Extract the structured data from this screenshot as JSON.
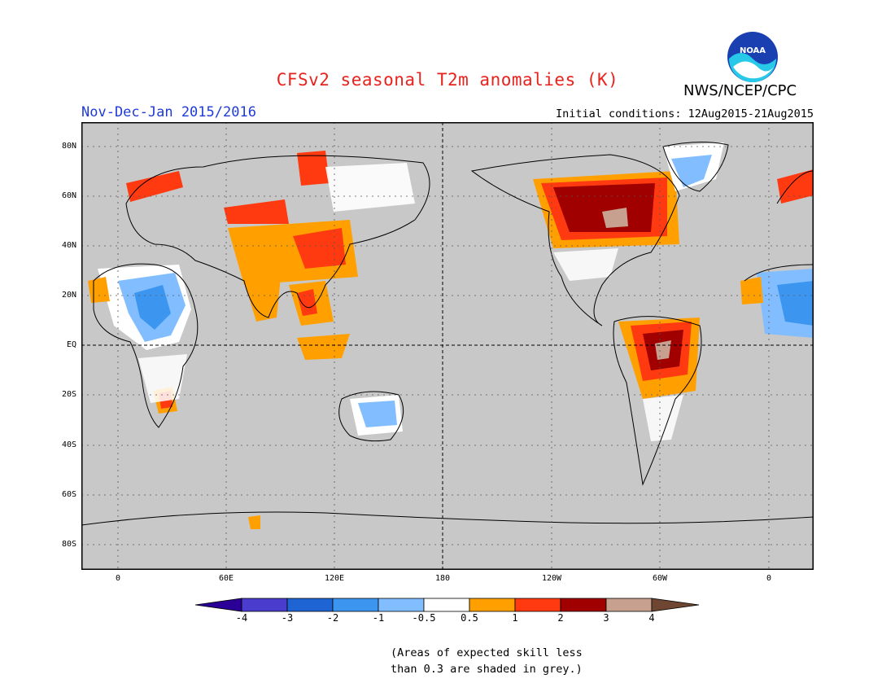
{
  "header": {
    "title": "CFSv2 seasonal T2m anomalies (K)",
    "season": "Nov-Dec-Jan 2015/2016",
    "initial_conditions": "Initial conditions: 12Aug2015-21Aug2015",
    "agency": "NWS/NCEP/CPC",
    "logo_text": "NOAA"
  },
  "map": {
    "lat_labels": [
      "80N",
      "60N",
      "40N",
      "20N",
      "EQ",
      "20S",
      "40S",
      "60S",
      "80S"
    ],
    "lon_labels": [
      "0",
      "60E",
      "120E",
      "180",
      "120W",
      "60W",
      "0"
    ],
    "background_color": "#c8c8c8",
    "anomaly_regions": [
      {
        "region": "Northern Canada / Hudson Bay",
        "category": "2 to 3"
      },
      {
        "region": "Northern Canada core",
        "category": "3 to 4"
      },
      {
        "region": "Central South America (Brazil)",
        "category": "2 to 3"
      },
      {
        "region": "Central South America core",
        "category": "3 to 4"
      },
      {
        "region": "Sahara / North Africa",
        "category": "-1 to -2"
      },
      {
        "region": "Greenland",
        "category": "-0.5 to -1"
      },
      {
        "region": "Central & East Asia",
        "category": "0.5 to 2"
      },
      {
        "region": "Scandinavia",
        "category": "1 to 2"
      }
    ]
  },
  "colorbar": {
    "labels": [
      "-4",
      "-3",
      "-2",
      "-1",
      "-0.5",
      "0.5",
      "1",
      "2",
      "3",
      "4"
    ],
    "colors": [
      "#2a0096",
      "#4a3ccc",
      "#1e64d2",
      "#3c96f0",
      "#82beff",
      "#ffffff",
      "#ffa000",
      "#ff3a10",
      "#a00000",
      "#c8a090",
      "#6e4632"
    ]
  },
  "note": {
    "line1": "(Areas of expected skill less",
    "line2": "than 0.3 are shaded in grey.)"
  }
}
